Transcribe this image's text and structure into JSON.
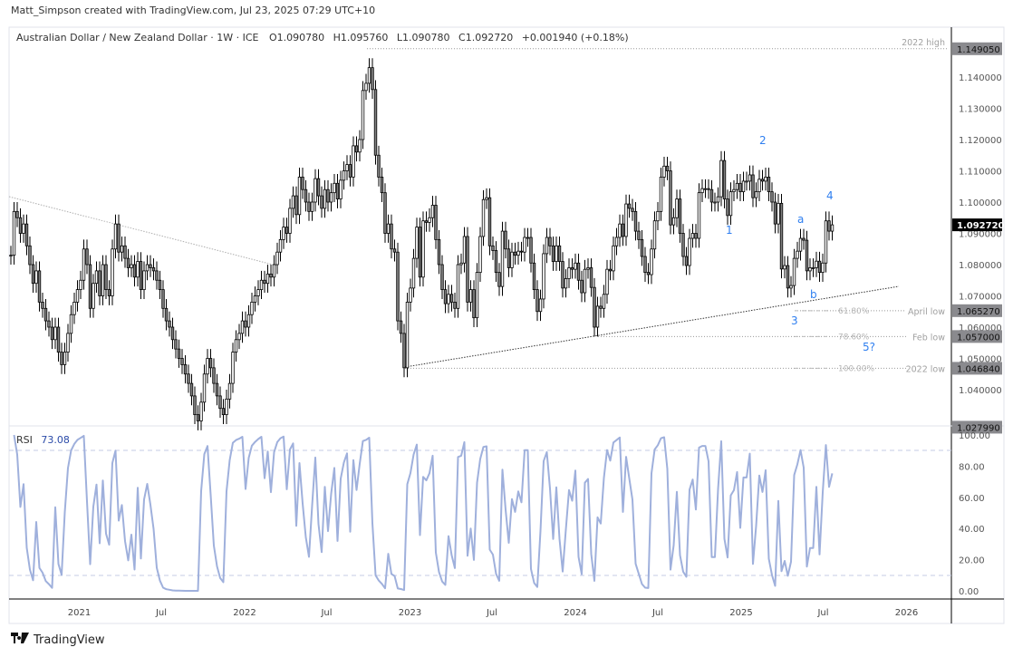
{
  "credit": "Matt_Simpson created with TradingView.com, Jul 23, 2025 07:29 UTC+10",
  "legend": {
    "symbol": "Australian Dollar / New Zealand Dollar · 1W · ICE",
    "open": "O1.090780",
    "high": "H1.095760",
    "low": "L1.090780",
    "close": "C1.092720",
    "change": "+0.001940 (+0.18%)"
  },
  "footer": {
    "brand": "TradingView",
    "logo_icon": "tradingview-logo-icon"
  },
  "colors": {
    "up_body": "#ffffff",
    "down_body": "#808080",
    "candle_border": "#000000",
    "rsi_line": "#9fb0dc",
    "annotation": "#2f7ff0",
    "level_text": "#a0a0a0"
  },
  "chart_data": {
    "type": "candlestick",
    "interval": "1W",
    "price": {
      "ylim": [
        1.0245,
        1.1525
      ],
      "y_ticks": [
        "1.140000",
        "1.130000",
        "1.120000",
        "1.110000",
        "1.100000",
        "1.090000",
        "1.080000",
        "1.070000",
        "1.060000",
        "1.050000",
        "1.040000"
      ],
      "closes": [
        1.083,
        1.097,
        1.095,
        1.09,
        1.093,
        1.086,
        1.08,
        1.074,
        1.078,
        1.068,
        1.066,
        1.062,
        1.06,
        1.056,
        1.06,
        1.052,
        1.048,
        1.052,
        1.058,
        1.064,
        1.068,
        1.072,
        1.075,
        1.085,
        1.08,
        1.066,
        1.074,
        1.078,
        1.07,
        1.08,
        1.072,
        1.07,
        1.085,
        1.093,
        1.084,
        1.086,
        1.082,
        1.079,
        1.08,
        1.076,
        1.081,
        1.072,
        1.078,
        1.08,
        1.079,
        1.078,
        1.075,
        1.072,
        1.066,
        1.062,
        1.06,
        1.056,
        1.053,
        1.05,
        1.048,
        1.045,
        1.042,
        1.038,
        1.032,
        1.03,
        1.036,
        1.045,
        1.05,
        1.047,
        1.042,
        1.038,
        1.034,
        1.032,
        1.037,
        1.042,
        1.052,
        1.056,
        1.058,
        1.062,
        1.06,
        1.064,
        1.068,
        1.07,
        1.072,
        1.075,
        1.074,
        1.077,
        1.076,
        1.08,
        1.084,
        1.088,
        1.092,
        1.09,
        1.098,
        1.102,
        1.096,
        1.108,
        1.104,
        1.1,
        1.097,
        1.1,
        1.1075,
        1.102,
        1.098,
        1.104,
        1.1,
        1.103,
        1.106,
        1.101,
        1.107,
        1.11,
        1.112,
        1.108,
        1.118,
        1.116,
        1.12,
        1.1357,
        1.138,
        1.143,
        1.136,
        1.115,
        1.108,
        1.103,
        1.09,
        1.093,
        1.085,
        1.084,
        1.062,
        1.058,
        1.047,
        1.068,
        1.0725,
        1.082,
        1.092,
        1.076,
        1.094,
        1.0935,
        1.095,
        1.099,
        1.088,
        1.08,
        1.072,
        1.0675,
        1.0705,
        1.068,
        1.066,
        1.08,
        1.0805,
        1.089,
        1.068,
        1.072,
        1.063,
        1.0775,
        1.089,
        1.1008,
        1.1014,
        1.086,
        1.0845,
        1.0775,
        1.073,
        1.0907,
        1.085,
        1.079,
        1.084,
        1.083,
        1.0843,
        1.084,
        1.0887,
        1.0887,
        1.0805,
        1.072,
        1.065,
        1.069,
        1.0835,
        1.0887,
        1.086,
        1.081,
        1.086,
        1.081,
        1.0725,
        1.0755,
        1.079,
        1.0785,
        1.0805,
        1.075,
        1.071,
        1.0785,
        1.079,
        1.0727,
        1.06,
        1.0667,
        1.066,
        1.0705,
        1.0785,
        1.078,
        1.086,
        1.0887,
        1.093,
        1.089,
        1.0994,
        1.098,
        1.097,
        1.0907,
        1.088,
        1.0826,
        1.0775,
        1.0768,
        1.085,
        1.094,
        1.097,
        1.108,
        1.1115,
        1.11,
        1.0927,
        1.095,
        1.101,
        1.09,
        1.0826,
        1.0797,
        1.0884,
        1.09,
        1.0884,
        1.103,
        1.1043,
        1.1043,
        1.104,
        1.1,
        1.1,
        1.1017,
        1.1133,
        1.101,
        1.0957,
        1.1033,
        1.104,
        1.106,
        1.1033,
        1.1067,
        1.1067,
        1.1087,
        1.1014,
        1.1033,
        1.1073,
        1.1067,
        1.108,
        1.1033,
        1.1,
        1.093,
        1.0996,
        1.0786,
        1.0797,
        1.0725,
        1.0733,
        1.082,
        1.0843,
        1.0884,
        1.0878,
        1.078,
        1.079,
        1.079,
        1.0811,
        1.0775,
        1.0805,
        1.094,
        1.0907,
        1.09272
      ],
      "last_price": "1.092720",
      "price_badges": [
        {
          "value": 1.14905,
          "label": "1.149050",
          "tag": "2022 high"
        },
        {
          "value": 1.06527,
          "label": "1.065270",
          "tag": "April low",
          "fib": "61.80%"
        },
        {
          "value": 1.057,
          "label": "1.057000",
          "tag": "Feb low",
          "fib": "78.60%"
        },
        {
          "value": 1.04684,
          "label": "1.046840",
          "tag": "2022 low",
          "fib": "100.00%"
        },
        {
          "value": 1.02799,
          "label": "1.027990"
        }
      ],
      "wave_labels": [
        "1",
        "2",
        "3",
        "4",
        "a",
        "b",
        "5?"
      ]
    },
    "rsi": {
      "label": "RSI",
      "value": "73.08",
      "ylim": [
        0,
        100
      ],
      "bands": [
        90,
        10
      ],
      "y_ticks": [
        "100.00",
        "80.00",
        "60.00",
        "40.00",
        "20.00",
        "0.00"
      ]
    },
    "x_ticks": [
      {
        "label": "2021",
        "date": "2021-01-01"
      },
      {
        "label": "Jul",
        "date": "2021-07-01"
      },
      {
        "label": "2022",
        "date": "2022-01-01"
      },
      {
        "label": "Jul",
        "date": "2022-07-01"
      },
      {
        "label": "2023",
        "date": "2023-01-01"
      },
      {
        "label": "Jul",
        "date": "2023-07-01"
      },
      {
        "label": "2024",
        "date": "2024-01-01"
      },
      {
        "label": "Jul",
        "date": "2024-07-01"
      },
      {
        "label": "2025",
        "date": "2025-01-01"
      },
      {
        "label": "Jul",
        "date": "2025-07-01"
      },
      {
        "label": "2026",
        "date": "2026-01-01"
      }
    ]
  }
}
